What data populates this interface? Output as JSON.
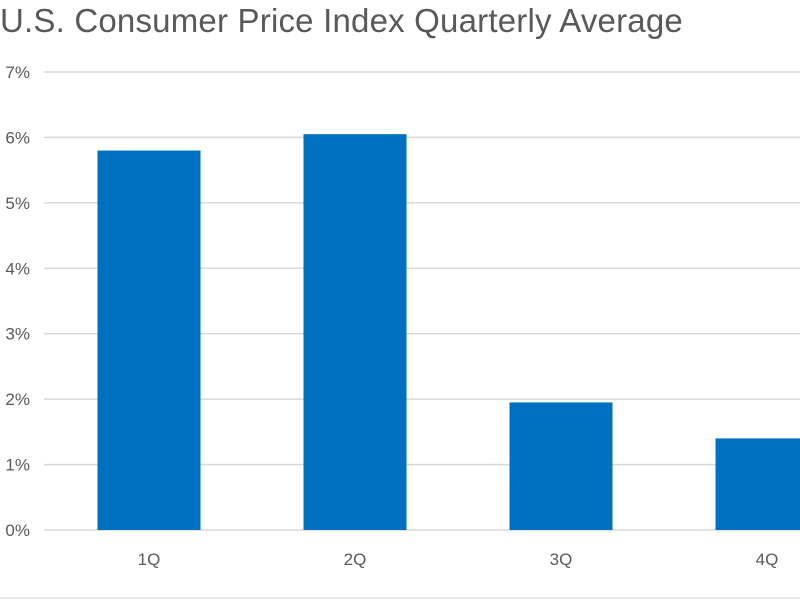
{
  "chart_data": {
    "type": "bar",
    "title": "U.S. Consumer Price Index Quarterly Average",
    "categories": [
      "1Q",
      "2Q",
      "3Q",
      "4Q"
    ],
    "values": [
      5.8,
      6.05,
      1.95,
      1.4
    ],
    "ylim": [
      0,
      7
    ],
    "y_ticks": [
      0,
      1,
      2,
      3,
      4,
      5,
      6,
      7
    ],
    "y_tick_labels": [
      "0%",
      "1%",
      "2%",
      "3%",
      "4%",
      "5%",
      "6%",
      "7%"
    ],
    "xlabel": "",
    "ylabel": "",
    "grid": true,
    "bar_color": "#0070c0"
  }
}
